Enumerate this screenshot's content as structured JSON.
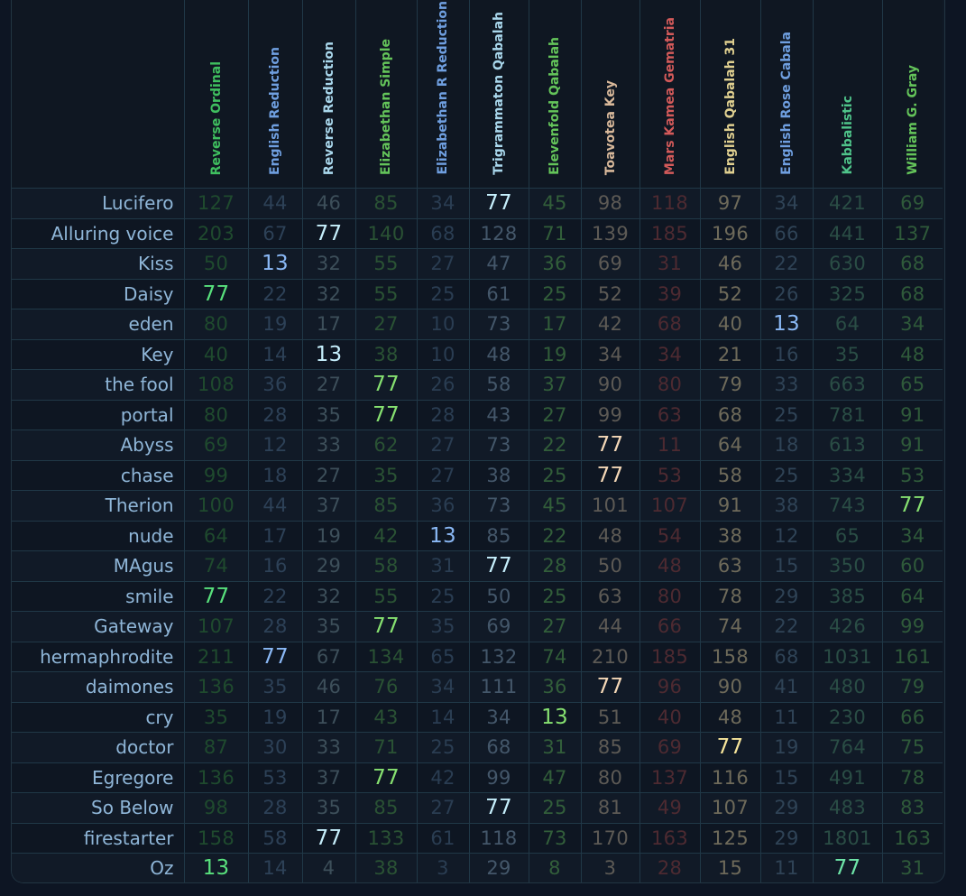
{
  "columns": [
    {
      "label": "Reverse Ordinal",
      "color": "#3fbf5f",
      "dim": "#1f4a2e",
      "hl": "#58e07c"
    },
    {
      "label": "English Reduction",
      "color": "#6f9fe0",
      "dim": "#2d4157",
      "hl": "#8ab8f5"
    },
    {
      "label": "Reverse Reduction",
      "color": "#a9d7ec",
      "dim": "#3d4f5a",
      "hl": "#c6effc"
    },
    {
      "label": "Elizabethan Simple",
      "color": "#64c45a",
      "dim": "#2a5234",
      "hl": "#86e070"
    },
    {
      "label": "Elizabethan R Reduction",
      "color": "#6f9fe0",
      "dim": "#2a3d52",
      "hl": "#8ab8f5"
    },
    {
      "label": "Trigrammaton Qabalah",
      "color": "#a9d7ec",
      "dim": "#44576a",
      "hl": "#c6effc"
    },
    {
      "label": "Elevenfold Qabalah",
      "color": "#64c45a",
      "dim": "#325e3a",
      "hl": "#86e070"
    },
    {
      "label": "Toavotea Key",
      "color": "#d8b89a",
      "dim": "#5d5a55",
      "hl": "#f4d7b6"
    },
    {
      "label": "Mars Kamea Gematria",
      "color": "#d35a5a",
      "dim": "#4d2a31",
      "hl": "#f07a7a"
    },
    {
      "label": "English Qabalah 31",
      "color": "#e0d090",
      "dim": "#6e6a5a",
      "hl": "#f6e49a"
    },
    {
      "label": "English Rose Cabala",
      "color": "#6f9fe0",
      "dim": "#2f4356",
      "hl": "#8ab8f5"
    },
    {
      "label": "Kabbalistic",
      "color": "#4fc48a",
      "dim": "#2a4d45",
      "hl": "#6ee4a8"
    },
    {
      "label": "William G. Gray",
      "color": "#64c45a",
      "dim": "#2f5a3a",
      "hl": "#86e070"
    }
  ],
  "rows": [
    {
      "label": "Lucifero",
      "values": [
        "127",
        "44",
        "46",
        "85",
        "34",
        "77",
        "45",
        "98",
        "118",
        "97",
        "34",
        "421",
        "69"
      ]
    },
    {
      "label": "Alluring voice",
      "values": [
        "203",
        "67",
        "77",
        "140",
        "68",
        "128",
        "71",
        "139",
        "185",
        "196",
        "66",
        "441",
        "137"
      ]
    },
    {
      "label": "Kiss",
      "values": [
        "50",
        "13",
        "32",
        "55",
        "27",
        "47",
        "36",
        "69",
        "31",
        "46",
        "22",
        "630",
        "68"
      ]
    },
    {
      "label": "Daisy",
      "values": [
        "77",
        "22",
        "32",
        "55",
        "25",
        "61",
        "25",
        "52",
        "39",
        "52",
        "26",
        "325",
        "68"
      ]
    },
    {
      "label": "eden",
      "values": [
        "80",
        "19",
        "17",
        "27",
        "10",
        "73",
        "17",
        "42",
        "68",
        "40",
        "13",
        "64",
        "34"
      ]
    },
    {
      "label": "Key",
      "values": [
        "40",
        "14",
        "13",
        "38",
        "10",
        "48",
        "19",
        "34",
        "34",
        "21",
        "16",
        "35",
        "48"
      ]
    },
    {
      "label": "the fool",
      "values": [
        "108",
        "36",
        "27",
        "77",
        "26",
        "58",
        "37",
        "90",
        "80",
        "79",
        "33",
        "663",
        "65"
      ]
    },
    {
      "label": "portal",
      "values": [
        "80",
        "28",
        "35",
        "77",
        "28",
        "43",
        "27",
        "99",
        "63",
        "68",
        "25",
        "781",
        "91"
      ]
    },
    {
      "label": "Abyss",
      "values": [
        "69",
        "12",
        "33",
        "62",
        "27",
        "73",
        "22",
        "77",
        "11",
        "64",
        "18",
        "613",
        "91"
      ]
    },
    {
      "label": "chase",
      "values": [
        "99",
        "18",
        "27",
        "35",
        "27",
        "38",
        "25",
        "77",
        "53",
        "58",
        "25",
        "334",
        "53"
      ]
    },
    {
      "label": "Therion",
      "values": [
        "100",
        "44",
        "37",
        "85",
        "36",
        "73",
        "45",
        "101",
        "107",
        "91",
        "38",
        "743",
        "77"
      ]
    },
    {
      "label": "nude",
      "values": [
        "64",
        "17",
        "19",
        "42",
        "13",
        "85",
        "22",
        "48",
        "54",
        "38",
        "12",
        "65",
        "34"
      ]
    },
    {
      "label": "MAgus",
      "values": [
        "74",
        "16",
        "29",
        "58",
        "31",
        "77",
        "28",
        "50",
        "48",
        "63",
        "15",
        "350",
        "60"
      ]
    },
    {
      "label": "smile",
      "values": [
        "77",
        "22",
        "32",
        "55",
        "25",
        "50",
        "25",
        "63",
        "80",
        "78",
        "29",
        "385",
        "64"
      ]
    },
    {
      "label": "Gateway",
      "values": [
        "107",
        "28",
        "35",
        "77",
        "35",
        "69",
        "27",
        "44",
        "66",
        "74",
        "22",
        "426",
        "99"
      ]
    },
    {
      "label": "hermaphrodite",
      "values": [
        "211",
        "77",
        "67",
        "134",
        "65",
        "132",
        "74",
        "210",
        "185",
        "158",
        "68",
        "1031",
        "161"
      ]
    },
    {
      "label": "daimones",
      "values": [
        "136",
        "35",
        "46",
        "76",
        "34",
        "111",
        "36",
        "77",
        "96",
        "90",
        "41",
        "480",
        "79"
      ]
    },
    {
      "label": "cry",
      "values": [
        "35",
        "19",
        "17",
        "43",
        "14",
        "34",
        "13",
        "51",
        "40",
        "48",
        "11",
        "230",
        "66"
      ]
    },
    {
      "label": "doctor",
      "values": [
        "87",
        "30",
        "33",
        "71",
        "25",
        "68",
        "31",
        "85",
        "69",
        "77",
        "19",
        "764",
        "75"
      ]
    },
    {
      "label": "Egregore",
      "values": [
        "136",
        "53",
        "37",
        "77",
        "42",
        "99",
        "47",
        "80",
        "137",
        "116",
        "15",
        "491",
        "78"
      ]
    },
    {
      "label": "So Below",
      "values": [
        "98",
        "28",
        "35",
        "85",
        "27",
        "77",
        "25",
        "81",
        "49",
        "107",
        "29",
        "483",
        "83"
      ]
    },
    {
      "label": "firestarter",
      "values": [
        "158",
        "58",
        "77",
        "133",
        "61",
        "118",
        "73",
        "170",
        "163",
        "125",
        "29",
        "1801",
        "163"
      ]
    },
    {
      "label": "Oz",
      "values": [
        "13",
        "14",
        "4",
        "38",
        "3",
        "29",
        "8",
        "3",
        "28",
        "15",
        "11",
        "77",
        "31"
      ]
    }
  ],
  "highlight_values": [
    "77",
    "13"
  ]
}
